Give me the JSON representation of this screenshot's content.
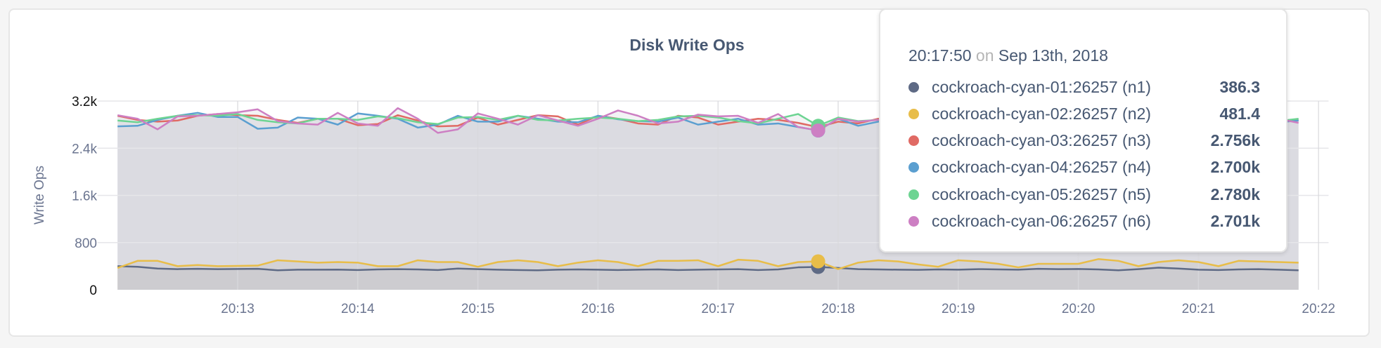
{
  "chart_data": {
    "type": "line",
    "title": "Disk Write Ops",
    "ylabel": "Write Ops",
    "xlabel": "",
    "ylim": [
      0,
      3200
    ],
    "yticks": [
      "0",
      "800",
      "1.6k",
      "2.4k",
      "3.2k"
    ],
    "ytick_values": [
      0,
      800,
      1600,
      2400,
      3200
    ],
    "xticks": [
      "20:13",
      "20:14",
      "20:15",
      "20:16",
      "20:17",
      "20:18",
      "20:19",
      "20:20",
      "20:21",
      "20:22"
    ],
    "x_start": "20:12:00",
    "x_end": "20:21:50",
    "x_interval_seconds": 10,
    "xlim": [
      "20:11:57",
      "20:22:05"
    ],
    "grid": true,
    "area_fill": true,
    "series": [
      {
        "name": "cockroach-cyan-01:26257 (n1)",
        "color": "#5e6a85",
        "values": [
          400,
          390,
          360,
          350,
          355,
          350,
          352,
          355,
          330,
          340,
          340,
          342,
          335,
          345,
          350,
          345,
          335,
          360,
          350,
          340,
          335,
          330,
          340,
          345,
          340,
          335,
          340,
          345,
          335,
          340,
          345,
          350,
          335,
          345,
          380,
          386.3,
          370,
          350,
          345,
          340,
          338,
          345,
          340,
          350,
          345,
          340,
          355,
          350,
          352,
          345,
          330,
          350,
          375,
          360,
          340,
          335,
          345,
          350,
          340,
          330
        ]
      },
      {
        "name": "cockroach-cyan-02:26257 (n2)",
        "color": "#e8bd49",
        "values": [
          370,
          490,
          490,
          400,
          420,
          400,
          405,
          410,
          500,
          480,
          460,
          470,
          460,
          400,
          400,
          500,
          470,
          470,
          390,
          470,
          500,
          470,
          400,
          460,
          500,
          470,
          400,
          490,
          490,
          500,
          400,
          510,
          490,
          400,
          470,
          481.4,
          350,
          460,
          500,
          480,
          430,
          390,
          500,
          480,
          440,
          380,
          440,
          440,
          440,
          520,
          490,
          400,
          470,
          500,
          470,
          400,
          490,
          480,
          470,
          460
        ]
      },
      {
        "name": "cockroach-cyan-03:26257 (n3)",
        "color": "#e06a64",
        "values": [
          2950,
          2880,
          2850,
          2870,
          2950,
          2980,
          2960,
          2950,
          2880,
          2830,
          2900,
          2900,
          2790,
          2810,
          2960,
          2870,
          2770,
          2780,
          2920,
          2800,
          2880,
          2960,
          2940,
          2800,
          2950,
          2900,
          2820,
          2800,
          2950,
          2920,
          2800,
          2850,
          2900,
          2880,
          2830,
          2756,
          2850,
          2820,
          2900,
          2880,
          2870,
          2820,
          2850,
          2900,
          2880,
          2830,
          2870,
          2880,
          2850,
          2900,
          2860,
          2880,
          2840,
          2870,
          2900,
          2880,
          2860,
          2880,
          2850,
          2870
        ]
      },
      {
        "name": "cockroach-cyan-04:26257 (n4)",
        "color": "#5b9fd0",
        "values": [
          2770,
          2780,
          2880,
          2950,
          3000,
          2930,
          2930,
          2730,
          2750,
          2920,
          2900,
          2800,
          2990,
          2950,
          2900,
          2750,
          2800,
          2950,
          2850,
          2850,
          2950,
          2900,
          2850,
          2840,
          2950,
          2890,
          2860,
          2850,
          2920,
          2800,
          2850,
          2900,
          2800,
          2820,
          2760,
          2700,
          2900,
          2780,
          2850,
          2880,
          2830,
          2800,
          2870,
          2900,
          2880,
          2820,
          2850,
          2880,
          2830,
          2900,
          2850,
          2880,
          2870,
          2830,
          2900,
          2860,
          2850,
          2880,
          2840,
          2870
        ]
      },
      {
        "name": "cockroach-cyan-05:26257 (n5)",
        "color": "#6dd492",
        "values": [
          2870,
          2840,
          2900,
          2950,
          2960,
          2950,
          2980,
          2880,
          2840,
          2820,
          2900,
          2900,
          2880,
          2940,
          2910,
          2840,
          2810,
          2920,
          2930,
          2880,
          2950,
          2880,
          2870,
          2900,
          2920,
          2900,
          2860,
          2880,
          2940,
          2950,
          2920,
          2860,
          2820,
          2900,
          2980,
          2780,
          2920,
          2860,
          2880,
          2900,
          2870,
          2890,
          2850,
          2900,
          2880,
          2860,
          2900,
          2870,
          2890,
          2880,
          2870,
          2900,
          2880,
          2860,
          2890,
          2900,
          2870,
          2880,
          2860,
          2900
        ]
      },
      {
        "name": "cockroach-cyan-06:26257 (n6)",
        "color": "#cd7fc3",
        "values": [
          2960,
          2900,
          2720,
          2940,
          2950,
          2980,
          3010,
          3060,
          2860,
          2820,
          2800,
          3000,
          2820,
          2780,
          3080,
          2900,
          2660,
          2720,
          2990,
          2900,
          2800,
          2960,
          2870,
          2780,
          2900,
          3040,
          2950,
          2820,
          2850,
          2970,
          2940,
          2950,
          2830,
          2980,
          2760,
          2701,
          2900,
          2850,
          2880,
          2920,
          2850,
          2800,
          2900,
          2880,
          2860,
          2920,
          2840,
          2870,
          2900,
          2850,
          2880,
          2860,
          2900,
          2870,
          2840,
          2890,
          2880,
          2860,
          2900,
          2830
        ]
      }
    ],
    "hover_index": 35
  },
  "tooltip": {
    "time": "20:17:50",
    "on": "on",
    "date": "Sep 13th, 2018",
    "rows": [
      {
        "name": "cockroach-cyan-01:26257 (n1)",
        "value": "386.3",
        "color": "#5e6a85"
      },
      {
        "name": "cockroach-cyan-02:26257 (n2)",
        "value": "481.4",
        "color": "#e8bd49"
      },
      {
        "name": "cockroach-cyan-03:26257 (n3)",
        "value": "2.756k",
        "color": "#e06a64"
      },
      {
        "name": "cockroach-cyan-04:26257 (n4)",
        "value": "2.700k",
        "color": "#5b9fd0"
      },
      {
        "name": "cockroach-cyan-05:26257 (n5)",
        "value": "2.780k",
        "color": "#6dd492"
      },
      {
        "name": "cockroach-cyan-06:26257 (n6)",
        "value": "2.701k",
        "color": "#cd7fc3"
      }
    ]
  }
}
